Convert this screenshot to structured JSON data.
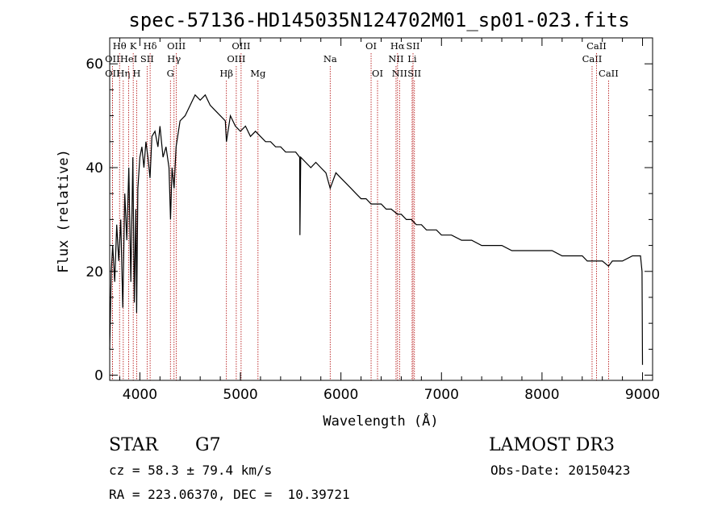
{
  "chart_data": {
    "type": "line",
    "title": "spec-57136-HD145035N124702M01_sp01-023.fits",
    "xlabel": "Wavelength (Å)",
    "ylabel": "Flux (relative)",
    "xlim": [
      3700,
      9100
    ],
    "ylim": [
      -1,
      65
    ],
    "xticks": [
      "4000",
      "5000",
      "6000",
      "7000",
      "8000",
      "9000"
    ],
    "yticks": [
      "0",
      "20",
      "40",
      "60"
    ],
    "line_color": "#000000",
    "marker_color": "#b00000",
    "series": [
      {
        "name": "flux",
        "x": [
          3700,
          3715,
          3730,
          3750,
          3770,
          3790,
          3810,
          3830,
          3850,
          3870,
          3890,
          3910,
          3930,
          3945,
          3960,
          3968,
          3980,
          4000,
          4020,
          4040,
          4060,
          4080,
          4101,
          4120,
          4150,
          4180,
          4200,
          4230,
          4260,
          4290,
          4305,
          4320,
          4340,
          4360,
          4400,
          4450,
          4500,
          4550,
          4600,
          4650,
          4700,
          4750,
          4800,
          4850,
          4861,
          4900,
          4950,
          5000,
          5050,
          5100,
          5150,
          5200,
          5250,
          5300,
          5350,
          5400,
          5450,
          5500,
          5550,
          5590,
          5592,
          5600,
          5650,
          5700,
          5750,
          5800,
          5850,
          5893,
          5950,
          6000,
          6050,
          6100,
          6150,
          6200,
          6250,
          6300,
          6350,
          6400,
          6450,
          6500,
          6563,
          6600,
          6650,
          6700,
          6750,
          6800,
          6850,
          6900,
          6950,
          7000,
          7100,
          7200,
          7300,
          7400,
          7500,
          7600,
          7700,
          7800,
          7900,
          8000,
          8100,
          8200,
          8300,
          8400,
          8450,
          8500,
          8542,
          8600,
          8662,
          8700,
          8800,
          8900,
          8980,
          8995,
          9000
        ],
        "y": [
          5,
          20,
          25,
          18,
          29,
          22,
          30,
          13,
          35,
          26,
          40,
          18,
          42,
          14,
          32,
          12,
          36,
          42,
          44,
          40,
          45,
          42,
          38,
          46,
          47,
          44,
          48,
          42,
          44,
          40,
          30,
          40,
          36,
          44,
          49,
          50,
          52,
          54,
          53,
          54,
          52,
          51,
          50,
          49,
          45,
          50,
          48,
          47,
          48,
          46,
          47,
          46,
          45,
          45,
          44,
          44,
          43,
          43,
          43,
          42,
          27,
          42,
          41,
          40,
          41,
          40,
          39,
          36,
          39,
          38,
          37,
          36,
          35,
          34,
          34,
          33,
          33,
          33,
          32,
          32,
          31,
          31,
          30,
          30,
          29,
          29,
          28,
          28,
          28,
          27,
          27,
          26,
          26,
          25,
          25,
          25,
          24,
          24,
          24,
          24,
          24,
          23,
          23,
          23,
          22,
          22,
          22,
          22,
          21,
          22,
          22,
          23,
          23,
          20,
          2
        ]
      }
    ],
    "spectral_lines": [
      {
        "wl": 3727,
        "label": "OII",
        "row": 2
      },
      {
        "wl": 3727,
        "label": "OII",
        "row": 3
      },
      {
        "wl": 3798,
        "label": "Hθ",
        "row": 1
      },
      {
        "wl": 3835,
        "label": "Hη",
        "row": 3
      },
      {
        "wl": 3889,
        "label": "HeI",
        "row": 2
      },
      {
        "wl": 3934,
        "label": "K",
        "row": 1
      },
      {
        "wl": 3968,
        "label": "H",
        "row": 3
      },
      {
        "wl": 4072,
        "label": "SII",
        "row": 2
      },
      {
        "wl": 4102,
        "label": "Hδ",
        "row": 1
      },
      {
        "wl": 4304,
        "label": "G",
        "row": 3
      },
      {
        "wl": 4340,
        "label": "Hγ",
        "row": 2
      },
      {
        "wl": 4363,
        "label": "OIII",
        "row": 1
      },
      {
        "wl": 4861,
        "label": "Hβ",
        "row": 3
      },
      {
        "wl": 4959,
        "label": "OIII",
        "row": 2
      },
      {
        "wl": 5007,
        "label": "OIII",
        "row": 1
      },
      {
        "wl": 5175,
        "label": "Mg",
        "row": 3
      },
      {
        "wl": 5893,
        "label": "Na",
        "row": 2
      },
      {
        "wl": 6300,
        "label": "OI",
        "row": 1
      },
      {
        "wl": 6364,
        "label": "OI",
        "row": 3
      },
      {
        "wl": 6548,
        "label": "NII",
        "row": 2
      },
      {
        "wl": 6563,
        "label": "Hα",
        "row": 1
      },
      {
        "wl": 6583,
        "label": "NII",
        "row": 3
      },
      {
        "wl": 6708,
        "label": "Li",
        "row": 2
      },
      {
        "wl": 6717,
        "label": "SII",
        "row": 1
      },
      {
        "wl": 6731,
        "label": "SII",
        "row": 3
      },
      {
        "wl": 8498,
        "label": "CaII",
        "row": 2
      },
      {
        "wl": 8542,
        "label": "CaII",
        "row": 1
      },
      {
        "wl": 8662,
        "label": "CaII",
        "row": 3
      }
    ]
  },
  "info": {
    "object_class": "STAR",
    "subclass": "G7",
    "survey": "LAMOST DR3",
    "redshift": "cz = 58.3 ± 79.4 km/s",
    "obs_date": "Obs-Date: 20150423",
    "coords": "RA = 223.06370, DEC =  10.39721"
  }
}
